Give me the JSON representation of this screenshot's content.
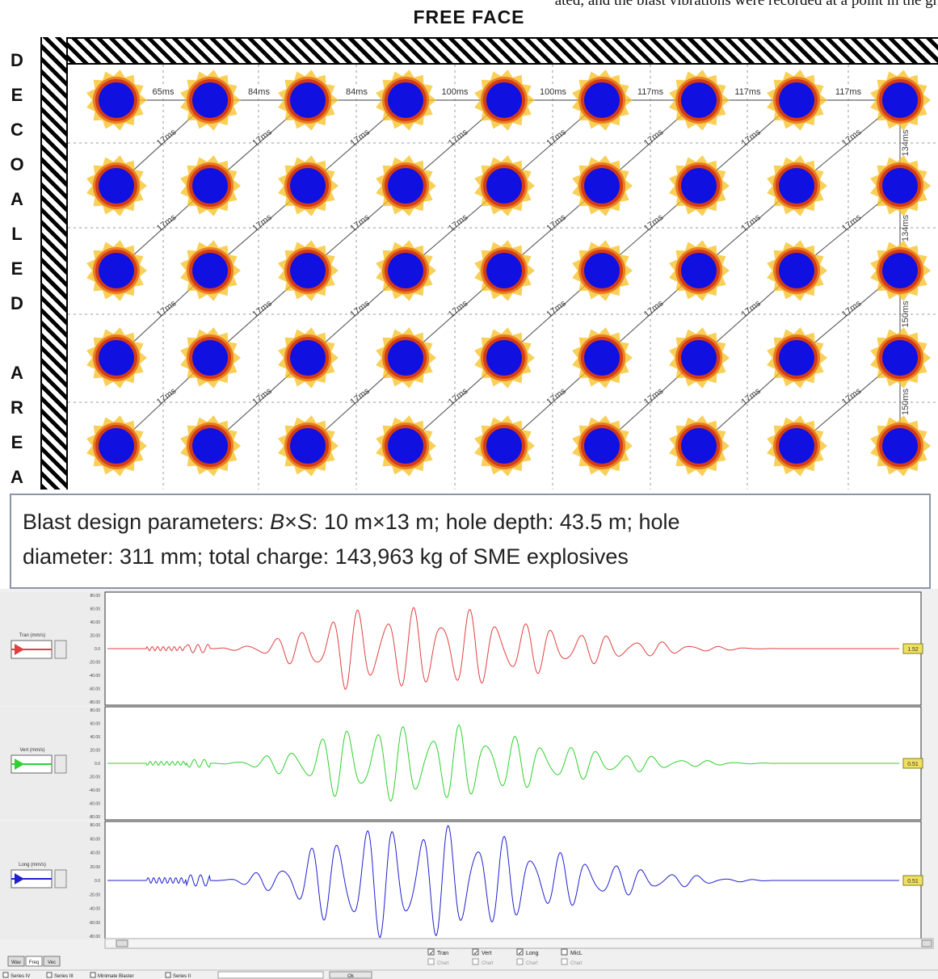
{
  "figure": {
    "top_crop_text": "ated, and the blast vibrations were recorded at a point in the gr",
    "free_face_label": "FREE FACE",
    "side_label_letters": [
      "D",
      "E",
      "C",
      "O",
      "A",
      "L",
      "E",
      "D",
      "",
      "A",
      "R",
      "E",
      "A"
    ],
    "colors": {
      "hole_fill": "#1010e0",
      "burst_orange": "#e8701a",
      "burst_yellow": "#f5c020",
      "burst_red": "#c82010",
      "connector_line": "#666666",
      "trans_trace": "#e04040",
      "vert_trace": "#30d030",
      "long_trace": "#2020d0"
    },
    "blast_pattern": {
      "rows": 5,
      "cols": 9,
      "row_delays": [
        "65ms",
        "84ms",
        "84ms",
        "100ms",
        "100ms",
        "117ms",
        "117ms",
        "117ms"
      ],
      "diagonal_delay": "17ms",
      "right_column_delays": [
        "134ms",
        "134ms",
        "150ms",
        "150ms"
      ]
    }
  },
  "parameters": {
    "prefix": "Blast design parameters: ",
    "b": "B",
    "times": "×",
    "s": "S",
    "bs_value": ": 10 m×13 m; hole depth: 43.5 m; hole",
    "line2": "diameter: 311 mm; total charge: 143,963 kg of SME explosives"
  },
  "seismograph": {
    "y_tick_labels": [
      "80.00",
      "60.00",
      "40.00",
      "20.00",
      "0.0",
      "-20.00",
      "-40.00",
      "-60.00",
      "-80.00"
    ],
    "channels": [
      {
        "label": "Tran (mm/s)",
        "end_value": "1.52",
        "color": "#e04040",
        "peak_ppv": 62
      },
      {
        "label": "Vert (mm/s)",
        "end_value": "0.51",
        "color": "#30d030",
        "peak_ppv": 58
      },
      {
        "label": "Long (mm/s)",
        "end_value": "0.51",
        "color": "#2020d0",
        "peak_ppv": 82
      }
    ],
    "legend": [
      {
        "name": "Tran",
        "checked": true,
        "sub": "Chart"
      },
      {
        "name": "Vert",
        "checked": true,
        "sub": "Chart"
      },
      {
        "name": "Long",
        "checked": true,
        "sub": "Chart"
      },
      {
        "name": "MicL",
        "checked": false,
        "sub": "Chart"
      }
    ],
    "bottom_toolbar": [
      "Series IV",
      "Series III",
      "Minimate Blaster",
      "Series II"
    ],
    "bottom_button": "Ok",
    "tab_labels": [
      "Wav",
      "Freq",
      "Vec"
    ]
  }
}
